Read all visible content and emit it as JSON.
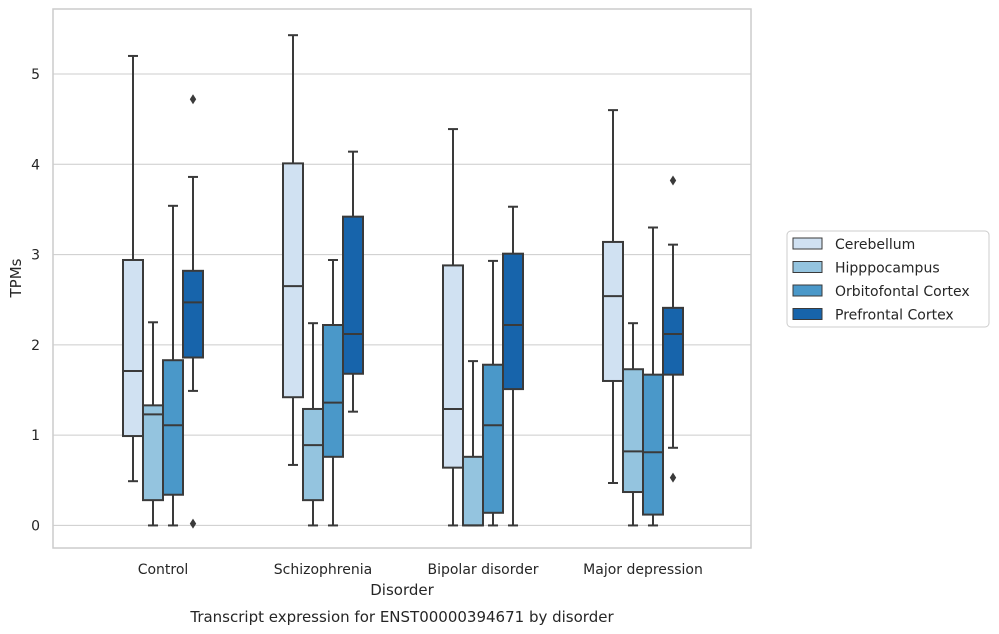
{
  "chart_data": {
    "type": "box",
    "caption": "Transcript expression for ENST00000394671 by disorder",
    "xlabel": "Disorder",
    "ylabel": "TPMs",
    "ylim": [
      -0.25,
      5.72
    ],
    "yticks": [
      0,
      1,
      2,
      3,
      4,
      5
    ],
    "grid": "horizontal",
    "legend_position": "right",
    "categories": [
      "Control",
      "Schizophrenia",
      "Bipolar disorder",
      "Major depression"
    ],
    "series": [
      {
        "name": "Cerebellum",
        "color": "#d0e1f2",
        "boxes": [
          {
            "whislo": 0.49,
            "q1": 0.99,
            "med": 1.71,
            "q3": 2.94,
            "whishi": 5.2,
            "fliers": []
          },
          {
            "whislo": 0.67,
            "q1": 1.42,
            "med": 2.65,
            "q3": 4.01,
            "whishi": 5.43,
            "fliers": []
          },
          {
            "whislo": 0.0,
            "q1": 0.64,
            "med": 1.29,
            "q3": 2.88,
            "whishi": 4.39,
            "fliers": []
          },
          {
            "whislo": 0.47,
            "q1": 1.6,
            "med": 2.54,
            "q3": 3.14,
            "whishi": 4.6,
            "fliers": []
          }
        ]
      },
      {
        "name": "Hipppocampus",
        "color": "#94c4df",
        "boxes": [
          {
            "whislo": 0.0,
            "q1": 0.28,
            "med": 1.23,
            "q3": 1.33,
            "whishi": 2.25,
            "fliers": []
          },
          {
            "whislo": 0.0,
            "q1": 0.28,
            "med": 0.89,
            "q3": 1.29,
            "whishi": 2.24,
            "fliers": []
          },
          {
            "whislo": 0.0,
            "q1": 0.0,
            "med": 0.0,
            "q3": 0.76,
            "whishi": 1.82,
            "fliers": []
          },
          {
            "whislo": 0.0,
            "q1": 0.37,
            "med": 0.82,
            "q3": 1.73,
            "whishi": 2.24,
            "fliers": []
          }
        ]
      },
      {
        "name": "Orbitofontal Cortex",
        "color": "#4a98c9",
        "boxes": [
          {
            "whislo": 0.0,
            "q1": 0.34,
            "med": 1.11,
            "q3": 1.83,
            "whishi": 3.54,
            "fliers": []
          },
          {
            "whislo": 0.0,
            "q1": 0.76,
            "med": 1.36,
            "q3": 2.22,
            "whishi": 2.94,
            "fliers": []
          },
          {
            "whislo": 0.0,
            "q1": 0.14,
            "med": 1.11,
            "q3": 1.78,
            "whishi": 2.93,
            "fliers": []
          },
          {
            "whislo": 0.0,
            "q1": 0.12,
            "med": 0.81,
            "q3": 1.67,
            "whishi": 3.3,
            "fliers": []
          }
        ]
      },
      {
        "name": "Prefrontal Cortex",
        "color": "#1764ab",
        "boxes": [
          {
            "whislo": 1.49,
            "q1": 1.86,
            "med": 2.47,
            "q3": 2.82,
            "whishi": 3.86,
            "fliers": [
              4.72,
              0.02
            ]
          },
          {
            "whislo": 1.26,
            "q1": 1.68,
            "med": 2.12,
            "q3": 3.42,
            "whishi": 4.14,
            "fliers": []
          },
          {
            "whislo": 0.0,
            "q1": 1.51,
            "med": 2.22,
            "q3": 3.01,
            "whishi": 3.53,
            "fliers": []
          },
          {
            "whislo": 0.86,
            "q1": 1.67,
            "med": 2.12,
            "q3": 2.41,
            "whishi": 3.11,
            "fliers": [
              3.82,
              0.53
            ]
          }
        ]
      }
    ]
  }
}
